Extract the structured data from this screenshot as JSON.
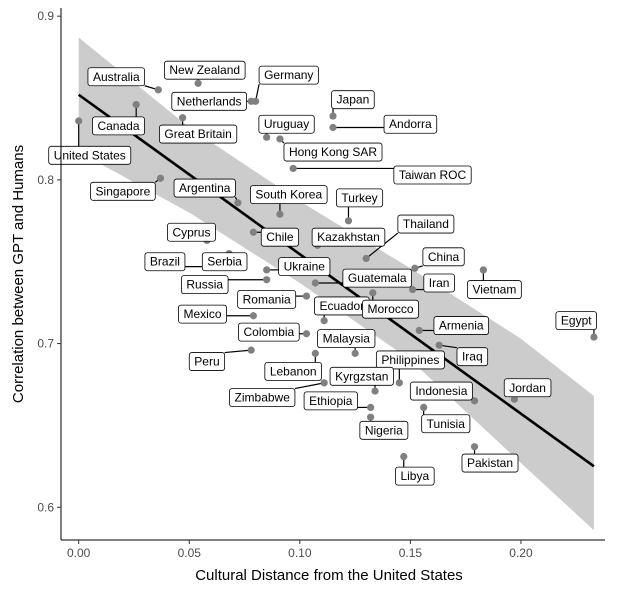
{
  "chart_data": {
    "type": "scatter",
    "xlabel": "Cultural Distance from the United States",
    "ylabel": "Correlation between GPT and Humans",
    "xlim": [
      -0.008,
      0.238
    ],
    "ylim": [
      0.58,
      0.905
    ],
    "x_ticks": [
      0.0,
      0.05,
      0.1,
      0.15,
      0.2
    ],
    "x_tick_labels": [
      "0.00",
      "0.05",
      "0.10",
      "0.15",
      "0.20"
    ],
    "y_ticks": [
      0.6,
      0.7,
      0.8,
      0.9
    ],
    "y_tick_labels": [
      "0.6",
      "0.7",
      "0.8",
      "0.9"
    ],
    "grid": false,
    "point_color": "#808080",
    "line_color": "#000000",
    "band_color": "#cccccc",
    "regression": {
      "x": [
        0.0,
        0.233
      ],
      "y": [
        0.852,
        0.625
      ]
    },
    "confidence_band": {
      "x": [
        0.0,
        0.05,
        0.1,
        0.15,
        0.2,
        0.233
      ],
      "upper": [
        0.887,
        0.832,
        0.787,
        0.746,
        0.703,
        0.668
      ],
      "lower": [
        0.817,
        0.78,
        0.737,
        0.69,
        0.627,
        0.586
      ]
    },
    "points": [
      {
        "country": "United States",
        "x": 0.0,
        "y": 0.836,
        "lx": 0.005,
        "ly": 0.815
      },
      {
        "country": "Canada",
        "x": 0.026,
        "y": 0.846,
        "lx": 0.018,
        "ly": 0.833
      },
      {
        "country": "Australia",
        "x": 0.036,
        "y": 0.855,
        "lx": 0.017,
        "ly": 0.863
      },
      {
        "country": "New Zealand",
        "x": 0.054,
        "y": 0.859,
        "lx": 0.057,
        "ly": 0.867
      },
      {
        "country": "Germany",
        "x": 0.08,
        "y": 0.848,
        "lx": 0.095,
        "ly": 0.864
      },
      {
        "country": "Netherlands",
        "x": 0.078,
        "y": 0.848,
        "lx": 0.059,
        "ly": 0.848
      },
      {
        "country": "Great Britain",
        "x": 0.047,
        "y": 0.838,
        "lx": 0.054,
        "ly": 0.828
      },
      {
        "country": "Singapore",
        "x": 0.037,
        "y": 0.801,
        "lx": 0.02,
        "ly": 0.793
      },
      {
        "country": "Japan",
        "x": 0.115,
        "y": 0.839,
        "lx": 0.124,
        "ly": 0.849
      },
      {
        "country": "Andorra",
        "x": 0.115,
        "y": 0.832,
        "lx": 0.15,
        "ly": 0.834
      },
      {
        "country": "Uruguay",
        "x": 0.085,
        "y": 0.826,
        "lx": 0.094,
        "ly": 0.834
      },
      {
        "country": "Hong Kong SAR",
        "x": 0.091,
        "y": 0.825,
        "lx": 0.115,
        "ly": 0.817
      },
      {
        "country": "Taiwan ROC",
        "x": 0.097,
        "y": 0.807,
        "lx": 0.16,
        "ly": 0.803
      },
      {
        "country": "Argentina",
        "x": 0.072,
        "y": 0.786,
        "lx": 0.057,
        "ly": 0.795
      },
      {
        "country": "South Korea",
        "x": 0.091,
        "y": 0.779,
        "lx": 0.095,
        "ly": 0.791
      },
      {
        "country": "Turkey",
        "x": 0.122,
        "y": 0.775,
        "lx": 0.127,
        "ly": 0.789
      },
      {
        "country": "Cyprus",
        "x": 0.058,
        "y": 0.763,
        "lx": 0.051,
        "ly": 0.768
      },
      {
        "country": "Chile",
        "x": 0.079,
        "y": 0.768,
        "lx": 0.091,
        "ly": 0.765
      },
      {
        "country": "Kazakhstan",
        "x": 0.108,
        "y": 0.76,
        "lx": 0.122,
        "ly": 0.765
      },
      {
        "country": "Thailand",
        "x": 0.13,
        "y": 0.752,
        "lx": 0.157,
        "ly": 0.773
      },
      {
        "country": "Brazil",
        "x": 0.072,
        "y": 0.747,
        "lx": 0.039,
        "ly": 0.75
      },
      {
        "country": "Serbia",
        "x": 0.068,
        "y": 0.755,
        "lx": 0.066,
        "ly": 0.75
      },
      {
        "country": "Ukraine",
        "x": 0.085,
        "y": 0.745,
        "lx": 0.102,
        "ly": 0.747
      },
      {
        "country": "China",
        "x": 0.152,
        "y": 0.746,
        "lx": 0.165,
        "ly": 0.753
      },
      {
        "country": "Vietnam",
        "x": 0.183,
        "y": 0.745,
        "lx": 0.188,
        "ly": 0.733
      },
      {
        "country": "Guatemala",
        "x": 0.107,
        "y": 0.737,
        "lx": 0.135,
        "ly": 0.74
      },
      {
        "country": "Iran",
        "x": 0.151,
        "y": 0.733,
        "lx": 0.163,
        "ly": 0.737
      },
      {
        "country": "Russia",
        "x": 0.085,
        "y": 0.739,
        "lx": 0.057,
        "ly": 0.736
      },
      {
        "country": "Romania",
        "x": 0.103,
        "y": 0.729,
        "lx": 0.085,
        "ly": 0.727
      },
      {
        "country": "Ecuador",
        "x": 0.111,
        "y": 0.714,
        "lx": 0.119,
        "ly": 0.723
      },
      {
        "country": "Morocco",
        "x": 0.133,
        "y": 0.731,
        "lx": 0.141,
        "ly": 0.721
      },
      {
        "country": "Egypt",
        "x": 0.233,
        "y": 0.704,
        "lx": 0.225,
        "ly": 0.714
      },
      {
        "country": "Mexico",
        "x": 0.079,
        "y": 0.717,
        "lx": 0.056,
        "ly": 0.718
      },
      {
        "country": "Armenia",
        "x": 0.154,
        "y": 0.708,
        "lx": 0.173,
        "ly": 0.711
      },
      {
        "country": "Colombia",
        "x": 0.103,
        "y": 0.706,
        "lx": 0.086,
        "ly": 0.707
      },
      {
        "country": "Malaysia",
        "x": 0.125,
        "y": 0.694,
        "lx": 0.121,
        "ly": 0.703
      },
      {
        "country": "Iraq",
        "x": 0.163,
        "y": 0.699,
        "lx": 0.178,
        "ly": 0.692
      },
      {
        "country": "Peru",
        "x": 0.078,
        "y": 0.696,
        "lx": 0.058,
        "ly": 0.689
      },
      {
        "country": "Lebanon",
        "x": 0.107,
        "y": 0.694,
        "lx": 0.097,
        "ly": 0.683
      },
      {
        "country": "Philippines",
        "x": 0.145,
        "y": 0.676,
        "lx": 0.15,
        "ly": 0.69
      },
      {
        "country": "Kyrgzstan",
        "x": 0.134,
        "y": 0.671,
        "lx": 0.128,
        "ly": 0.68
      },
      {
        "country": "Zimbabwe",
        "x": 0.111,
        "y": 0.676,
        "lx": 0.083,
        "ly": 0.667
      },
      {
        "country": "Indonesia",
        "x": 0.179,
        "y": 0.665,
        "lx": 0.164,
        "ly": 0.671
      },
      {
        "country": "Jordan",
        "x": 0.197,
        "y": 0.666,
        "lx": 0.203,
        "ly": 0.673
      },
      {
        "country": "Ethiopia",
        "x": 0.132,
        "y": 0.661,
        "lx": 0.114,
        "ly": 0.665
      },
      {
        "country": "Tunisia",
        "x": 0.156,
        "y": 0.661,
        "lx": 0.166,
        "ly": 0.651
      },
      {
        "country": "Nigeria",
        "x": 0.132,
        "y": 0.655,
        "lx": 0.138,
        "ly": 0.647
      },
      {
        "country": "Pakistan",
        "x": 0.179,
        "y": 0.637,
        "lx": 0.186,
        "ly": 0.627
      },
      {
        "country": "Libya",
        "x": 0.147,
        "y": 0.631,
        "lx": 0.152,
        "ly": 0.619
      }
    ]
  }
}
